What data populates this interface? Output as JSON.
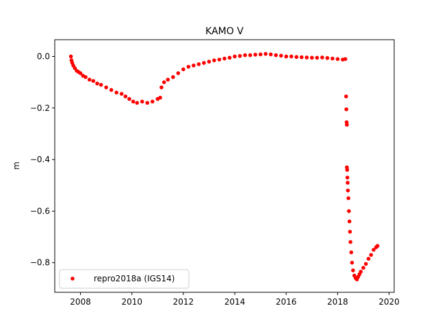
{
  "chart_data": {
    "type": "scatter",
    "title": "KAMO V",
    "xlabel": "",
    "ylabel": "m",
    "xlim": [
      2007.0,
      2020.2
    ],
    "ylim": [
      -0.915,
      0.065
    ],
    "x_ticks": [
      {
        "value": 2008,
        "label": "2008"
      },
      {
        "value": 2010,
        "label": "2010"
      },
      {
        "value": 2012,
        "label": "2012"
      },
      {
        "value": 2014,
        "label": "2014"
      },
      {
        "value": 2016,
        "label": "2016"
      },
      {
        "value": 2018,
        "label": "2018"
      },
      {
        "value": 2020,
        "label": "2020"
      }
    ],
    "y_ticks": [
      {
        "value": 0.0,
        "label": "0.0"
      },
      {
        "value": -0.2,
        "label": "−0.2"
      },
      {
        "value": -0.4,
        "label": "−0.4"
      },
      {
        "value": -0.6,
        "label": "−0.6"
      },
      {
        "value": -0.8,
        "label": "−0.8"
      }
    ],
    "grid": false,
    "legend_position": "lower-left",
    "series": [
      {
        "name": "repro2018a (IGS14)",
        "color": "#ff0000",
        "marker": "circle",
        "points": [
          [
            2007.63,
            0.0
          ],
          [
            2007.65,
            -0.015
          ],
          [
            2007.68,
            -0.025
          ],
          [
            2007.72,
            -0.035
          ],
          [
            2007.78,
            -0.045
          ],
          [
            2007.85,
            -0.055
          ],
          [
            2007.92,
            -0.06
          ],
          [
            2008.0,
            -0.065
          ],
          [
            2008.1,
            -0.075
          ],
          [
            2008.2,
            -0.08
          ],
          [
            2008.35,
            -0.09
          ],
          [
            2008.5,
            -0.095
          ],
          [
            2008.65,
            -0.105
          ],
          [
            2008.8,
            -0.11
          ],
          [
            2009.0,
            -0.12
          ],
          [
            2009.2,
            -0.13
          ],
          [
            2009.4,
            -0.14
          ],
          [
            2009.6,
            -0.145
          ],
          [
            2009.75,
            -0.155
          ],
          [
            2009.9,
            -0.165
          ],
          [
            2010.05,
            -0.175
          ],
          [
            2010.2,
            -0.18
          ],
          [
            2010.4,
            -0.175
          ],
          [
            2010.6,
            -0.18
          ],
          [
            2010.8,
            -0.175
          ],
          [
            2011.0,
            -0.165
          ],
          [
            2011.1,
            -0.16
          ],
          [
            2011.15,
            -0.12
          ],
          [
            2011.25,
            -0.1
          ],
          [
            2011.4,
            -0.09
          ],
          [
            2011.6,
            -0.08
          ],
          [
            2011.8,
            -0.065
          ],
          [
            2012.0,
            -0.05
          ],
          [
            2012.2,
            -0.04
          ],
          [
            2012.4,
            -0.035
          ],
          [
            2012.6,
            -0.03
          ],
          [
            2012.8,
            -0.025
          ],
          [
            2013.0,
            -0.02
          ],
          [
            2013.2,
            -0.015
          ],
          [
            2013.4,
            -0.012
          ],
          [
            2013.6,
            -0.008
          ],
          [
            2013.8,
            -0.005
          ],
          [
            2014.0,
            0.0
          ],
          [
            2014.2,
            0.002
          ],
          [
            2014.4,
            0.005
          ],
          [
            2014.6,
            0.005
          ],
          [
            2014.8,
            0.007
          ],
          [
            2015.0,
            0.008
          ],
          [
            2015.2,
            0.01
          ],
          [
            2015.4,
            0.008
          ],
          [
            2015.6,
            0.005
          ],
          [
            2015.8,
            0.003
          ],
          [
            2016.0,
            0.0
          ],
          [
            2016.2,
            0.0
          ],
          [
            2016.4,
            -0.002
          ],
          [
            2016.6,
            -0.003
          ],
          [
            2016.8,
            -0.004
          ],
          [
            2017.0,
            -0.005
          ],
          [
            2017.2,
            -0.005
          ],
          [
            2017.4,
            -0.004
          ],
          [
            2017.6,
            -0.006
          ],
          [
            2017.8,
            -0.008
          ],
          [
            2018.0,
            -0.01
          ],
          [
            2018.2,
            -0.012
          ],
          [
            2018.3,
            -0.01
          ],
          [
            2018.33,
            -0.155
          ],
          [
            2018.34,
            -0.205
          ],
          [
            2018.35,
            -0.255
          ],
          [
            2018.36,
            -0.265
          ],
          [
            2018.36,
            -0.43
          ],
          [
            2018.37,
            -0.44
          ],
          [
            2018.38,
            -0.47
          ],
          [
            2018.39,
            -0.49
          ],
          [
            2018.4,
            -0.52
          ],
          [
            2018.42,
            -0.55
          ],
          [
            2018.44,
            -0.6
          ],
          [
            2018.46,
            -0.64
          ],
          [
            2018.48,
            -0.68
          ],
          [
            2018.5,
            -0.72
          ],
          [
            2018.53,
            -0.76
          ],
          [
            2018.56,
            -0.8
          ],
          [
            2018.6,
            -0.83
          ],
          [
            2018.65,
            -0.85
          ],
          [
            2018.7,
            -0.86
          ],
          [
            2018.75,
            -0.865
          ],
          [
            2018.8,
            -0.855
          ],
          [
            2018.85,
            -0.845
          ],
          [
            2018.9,
            -0.835
          ],
          [
            2019.0,
            -0.82
          ],
          [
            2019.1,
            -0.805
          ],
          [
            2019.2,
            -0.785
          ],
          [
            2019.3,
            -0.77
          ],
          [
            2019.4,
            -0.75
          ],
          [
            2019.5,
            -0.74
          ],
          [
            2019.55,
            -0.735
          ]
        ]
      }
    ]
  }
}
